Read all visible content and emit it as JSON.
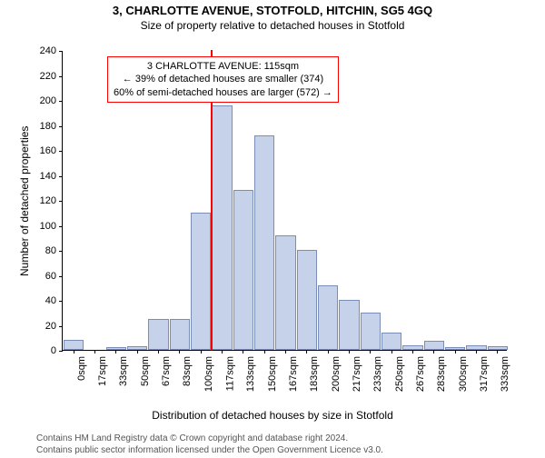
{
  "title": "3, CHARLOTTE AVENUE, STOTFOLD, HITCHIN, SG5 4GQ",
  "subtitle": "Size of property relative to detached houses in Stotfold",
  "ylabel": "Number of detached properties",
  "xlabel": "Distribution of detached houses by size in Stotfold",
  "title_fontsize": 13,
  "subtitle_fontsize": 12,
  "axis_label_fontsize": 12,
  "chart": {
    "type": "histogram",
    "ylim": [
      0,
      240
    ],
    "ytick_step": 20,
    "bar_fill": "#c6d2ea",
    "bar_border": "#7a8db5",
    "background": "#ffffff",
    "xticks": [
      "0sqm",
      "17sqm",
      "33sqm",
      "50sqm",
      "67sqm",
      "83sqm",
      "100sqm",
      "117sqm",
      "133sqm",
      "150sqm",
      "167sqm",
      "183sqm",
      "200sqm",
      "217sqm",
      "233sqm",
      "250sqm",
      "267sqm",
      "283sqm",
      "300sqm",
      "317sqm",
      "333sqm"
    ],
    "values": [
      8,
      0,
      2,
      3,
      25,
      25,
      110,
      196,
      128,
      172,
      92,
      80,
      52,
      40,
      30,
      14,
      4,
      7,
      2,
      4,
      3
    ],
    "reference_line": {
      "x_index": 7,
      "color": "#ff0000",
      "width": 2
    }
  },
  "annotation": {
    "lines": [
      "3 CHARLOTTE AVENUE: 115sqm",
      "← 39% of detached houses are smaller (374)",
      "60% of semi-detached houses are larger (572) →"
    ],
    "border_color": "#ff0000"
  },
  "footer": {
    "line1": "Contains HM Land Registry data © Crown copyright and database right 2024.",
    "line2": "Contains public sector information licensed under the Open Government Licence v3.0."
  }
}
